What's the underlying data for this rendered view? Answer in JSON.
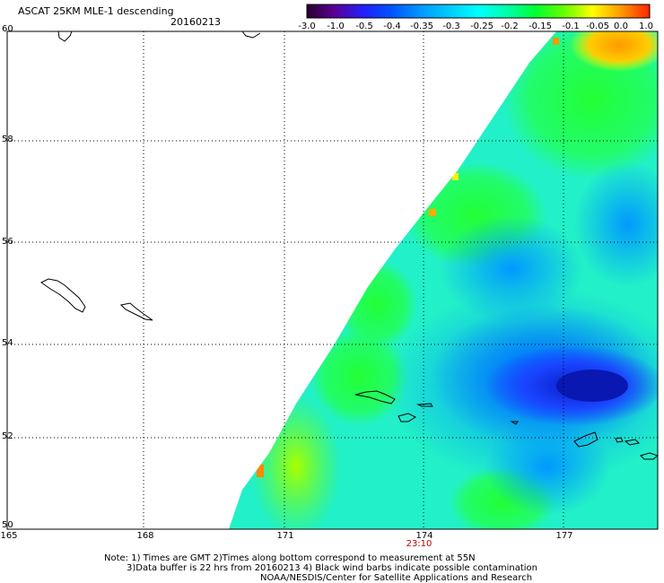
{
  "header": {
    "title": "ASCAT 25KM MLE-1 descending",
    "date": "20160213"
  },
  "colorbar": {
    "labels": [
      "-3.0",
      "-1.0",
      "-0.5",
      "-0.4",
      "-0.35",
      "-0.3",
      "-0.25",
      "-0.2",
      "-0.15",
      "-0.1",
      "-0.05",
      "0.0",
      "1.0"
    ],
    "colors": [
      "#2b002b",
      "#5a009a",
      "#2020ff",
      "#0055ff",
      "#0099ff",
      "#00ccff",
      "#00ffff",
      "#00ffaa",
      "#00ff33",
      "#66ff00",
      "#ffff00",
      "#ff9900",
      "#ff2200"
    ]
  },
  "map": {
    "lat_labels": [
      "60",
      "58",
      "56",
      "54",
      "52",
      "50"
    ],
    "lon_labels": [
      "165",
      "168",
      "171",
      "174",
      "177"
    ],
    "time_label": "23:10"
  },
  "notes": {
    "line1": "Note: 1) Times are GMT 2)Times along bottom correspond to measurement at 55N",
    "line2": "3)Data buffer is 22 hrs from 20160213 4) Black wind barbs indicate possible contamination",
    "line3": "NOAA/NESDIS/Center for Satellite Applications and Research"
  }
}
